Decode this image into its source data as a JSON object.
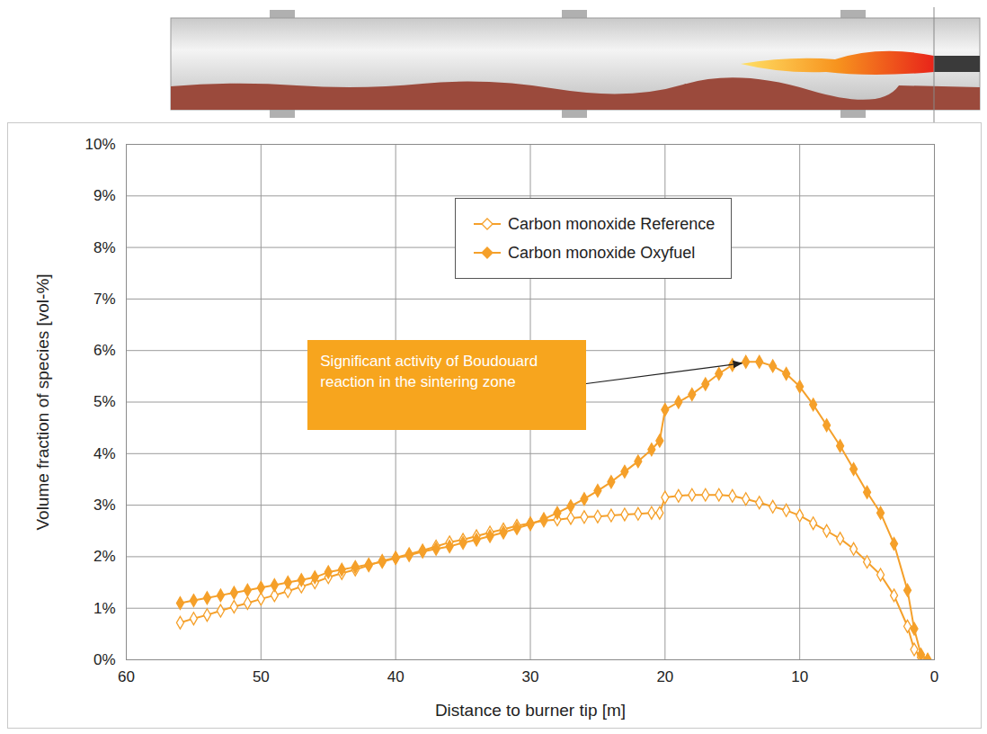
{
  "chart_data": {
    "type": "line",
    "x_label": "Distance to burner tip [m]",
    "y_label": "Volume fraction of species [vol-%]",
    "x": [
      56,
      55,
      54,
      53,
      52,
      51,
      50,
      49,
      48,
      47,
      46,
      45,
      44,
      43,
      42,
      41,
      40,
      39,
      38,
      37,
      36,
      35,
      34,
      33,
      32,
      31,
      30,
      29,
      28,
      27,
      26,
      25,
      24,
      23,
      22,
      21,
      20.4,
      20,
      19,
      18,
      17,
      16,
      15,
      14,
      13,
      12,
      11,
      10,
      9,
      8,
      7,
      6,
      5,
      4,
      3,
      2,
      1.5,
      1,
      0.5
    ],
    "series": [
      {
        "name": "Carbon monoxide Reference",
        "color": "#F5A02A",
        "marker": "diamond-open",
        "values": [
          0.72,
          0.8,
          0.87,
          0.95,
          1.03,
          1.1,
          1.18,
          1.25,
          1.33,
          1.42,
          1.5,
          1.6,
          1.68,
          1.75,
          1.83,
          1.92,
          1.98,
          2.05,
          2.12,
          2.2,
          2.28,
          2.33,
          2.4,
          2.47,
          2.53,
          2.6,
          2.65,
          2.7,
          2.72,
          2.75,
          2.77,
          2.78,
          2.8,
          2.82,
          2.83,
          2.85,
          2.85,
          3.15,
          3.18,
          3.2,
          3.2,
          3.2,
          3.18,
          3.12,
          3.05,
          2.97,
          2.9,
          2.8,
          2.65,
          2.5,
          2.35,
          2.15,
          1.9,
          1.65,
          1.25,
          0.65,
          0.2,
          0.05,
          0.0
        ]
      },
      {
        "name": "Carbon monoxide Oxyfuel",
        "color": "#F5A02A",
        "marker": "diamond",
        "values": [
          1.1,
          1.15,
          1.2,
          1.25,
          1.3,
          1.35,
          1.4,
          1.45,
          1.5,
          1.55,
          1.6,
          1.7,
          1.75,
          1.8,
          1.85,
          1.9,
          1.97,
          2.03,
          2.1,
          2.15,
          2.2,
          2.27,
          2.33,
          2.4,
          2.47,
          2.55,
          2.63,
          2.73,
          2.85,
          2.98,
          3.12,
          3.28,
          3.45,
          3.65,
          3.85,
          4.08,
          4.25,
          4.85,
          5.0,
          5.15,
          5.35,
          5.55,
          5.72,
          5.78,
          5.78,
          5.7,
          5.55,
          5.3,
          4.95,
          4.55,
          4.15,
          3.7,
          3.25,
          2.85,
          2.25,
          1.35,
          0.6,
          0.1,
          0.0
        ]
      }
    ],
    "xlim": [
      60,
      0
    ],
    "ylim": [
      0,
      10
    ],
    "xticks": [
      60,
      50,
      40,
      30,
      20,
      10,
      0
    ],
    "yticks": [
      {
        "value": 0,
        "label": "0%"
      },
      {
        "value": 1,
        "label": "1%"
      },
      {
        "value": 2,
        "label": "2%"
      },
      {
        "value": 3,
        "label": "3%"
      },
      {
        "value": 4,
        "label": "4%"
      },
      {
        "value": 5,
        "label": "5%"
      },
      {
        "value": 6,
        "label": "6%"
      },
      {
        "value": 7,
        "label": "7%"
      },
      {
        "value": 8,
        "label": "8%"
      },
      {
        "value": 9,
        "label": "9%"
      },
      {
        "value": 10,
        "label": "10%"
      }
    ],
    "grid": true,
    "legend": "top-right",
    "annotations": [
      {
        "text": "Significant activity of Boudouard reaction in the sintering zone",
        "color": "#F7A51E"
      }
    ]
  }
}
